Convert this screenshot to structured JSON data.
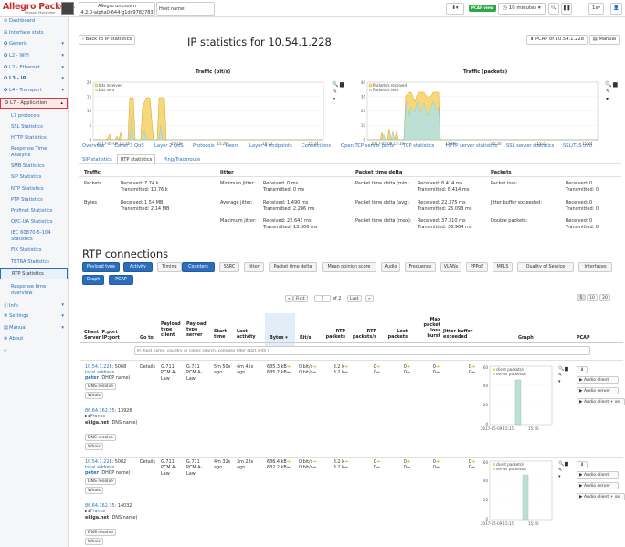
{
  "header": {
    "logo": "Allegro Packets",
    "logo_sub": "Network Multimeter",
    "device_name": "Allegro unknown",
    "device_version": "4.2.0-alpha0-644-g1dc9782783",
    "hostname_label": "Host name:",
    "pcap_view_badge": "PCAP view",
    "time_range": "10 minutes",
    "interval": "1s"
  },
  "sidebar": {
    "items": [
      {
        "label": "Dashboard",
        "icon": "dashboard-icon"
      },
      {
        "label": "Interface stats",
        "icon": "interface-icon"
      },
      {
        "label": "Generic",
        "icon": "gear-icon"
      },
      {
        "label": "L2 - WiFi",
        "icon": "gear-icon"
      },
      {
        "label": "L2 - Ethernet",
        "icon": "gear-icon"
      },
      {
        "label": "L3 - IP",
        "icon": "gear-icon"
      },
      {
        "label": "L4 - Transport",
        "icon": "gear-icon"
      },
      {
        "label": "L7 - Application",
        "icon": "gear-icon"
      }
    ],
    "sub_items": [
      "L7 protocols",
      "SSL Statistics",
      "HTTP Statistics",
      "Response Time Analysis",
      "SMB Statistics",
      "SIP Statistics",
      "NTP Statistics",
      "PTP Statistics",
      "Profinet Statistics",
      "OPC-UA Statistics",
      "IEC 60870-5-104 Statistics",
      "FIX Statistics",
      "TETRA Statistics",
      "RTP Statistics",
      "Response time overview"
    ],
    "bottom_items": [
      {
        "label": "Info",
        "icon": "info-icon"
      },
      {
        "label": "Settings",
        "icon": "settings-icon"
      },
      {
        "label": "Manual",
        "icon": "book-icon"
      },
      {
        "label": "About",
        "icon": "about-icon"
      }
    ],
    "collapse": "«"
  },
  "toolbar": {
    "back_label": "Back to IP statistics",
    "pcap_label": "PCAP of 10.54.1.228",
    "manual_label": "Manual"
  },
  "page_title": "IP statistics for 10.54.1.228",
  "charts": [
    {
      "title": "Traffic (bit/s)",
      "legend": [
        "bits received",
        "bits sent"
      ],
      "yticks": [
        "20",
        "15",
        "10",
        "5",
        "0"
      ],
      "xticks": [
        "2017-05-09 15:16",
        "15:18",
        "15:20",
        "15:22",
        "15:24"
      ]
    },
    {
      "title": "Traffic (packets)",
      "legend": [
        "Packets/s received",
        "Packets/s sent"
      ],
      "yticks": [
        "40",
        "30",
        "20",
        "10",
        "0"
      ],
      "xticks": [
        "2017-05-09 15:16",
        "15:18",
        "15:20",
        "15:22",
        "15:24"
      ]
    }
  ],
  "tabs": [
    "Overview",
    "Layer 3 QoS",
    "Layer 2 QoS",
    "Protocols",
    "Peers",
    "Layer 4 endpoints",
    "Connections",
    "Open TCP server ports",
    "TCP statistics",
    "HTTP server statistics",
    "SSL server statistics",
    "SSL/TLS info",
    "SIP statistics",
    "RTP statistics",
    "Ping/Traceroute"
  ],
  "stats": {
    "traffic": {
      "title": "Traffic",
      "rows": [
        {
          "label": "Packets",
          "received": "Received: 7.74 k",
          "transmitted": "Transmitted: 10.76 k"
        },
        {
          "label": "Bytes",
          "received": "Received: 1.54 MB",
          "transmitted": "Transmitted: 2.14 MB"
        }
      ]
    },
    "jitter": {
      "title": "Jitter",
      "rows": [
        {
          "label": "Minimum jitter:",
          "received": "Received: 0 ms",
          "transmitted": "Transmitted: 0 ms"
        },
        {
          "label": "Average jitter:",
          "received": "Received: 1.490 ms",
          "transmitted": "Transmitted: 2.286 ms"
        },
        {
          "label": "Maximum jitter:",
          "received": "Received: 22.643 ms",
          "transmitted": "Transmitted: 13.306 ms"
        }
      ]
    },
    "delta": {
      "title": "Packet time delta",
      "rows": [
        {
          "label": "Packet time delta (min):",
          "received": "Received: 8.414 ms",
          "transmitted": "Transmitted: 8.414 ms"
        },
        {
          "label": "Packet time delta (avg):",
          "received": "Received: 22.375 ms",
          "transmitted": "Transmitted: 25.093 ms"
        },
        {
          "label": "Packet time delta (max):",
          "received": "Received: 37.310 ms",
          "transmitted": "Transmitted: 36.964 ms"
        }
      ]
    },
    "packets": {
      "title": "Packets",
      "rows": [
        {
          "label": "Packet loss:",
          "received": "Received: 0",
          "transmitted": "Transmitted: 0"
        },
        {
          "label": "Jitter buffer exceeded:",
          "received": "Received: 0",
          "transmitted": "Transmitted: 0"
        },
        {
          "label": "Double packets:",
          "received": "Received: 0",
          "transmitted": "Transmitted: 0"
        }
      ]
    }
  },
  "rtp_title": "RTP connections",
  "filters_row1": [
    {
      "label": "Payload type",
      "on": true
    },
    {
      "label": "Activity",
      "on": true
    },
    {
      "label": "Timing",
      "on": false
    },
    {
      "label": "Counters",
      "on": true
    },
    {
      "label": "SSRC",
      "on": false
    },
    {
      "label": "Jitter",
      "on": false
    },
    {
      "label": "Packet time delta",
      "on": false
    },
    {
      "label": "Mean opinion score",
      "on": false
    },
    {
      "label": "Audio",
      "on": false
    },
    {
      "label": "Frequency",
      "on": false
    },
    {
      "label": "VLANs",
      "on": false
    },
    {
      "label": "PPPoE",
      "on": false
    },
    {
      "label": "MPLS",
      "on": false
    },
    {
      "label": "Quality of Service",
      "on": false
    },
    {
      "label": "Interfaces",
      "on": false
    }
  ],
  "filters_row2": [
    {
      "label": "Graph",
      "on": true
    },
    {
      "label": "PCAP",
      "on": true
    }
  ],
  "pagination": {
    "prev": "«",
    "first": "First",
    "page": "1",
    "of": "of 2",
    "last": "Last",
    "next": "»",
    "sizes": [
      "5",
      "10",
      "20"
    ]
  },
  "table": {
    "headers": {
      "client": "Client IP:port",
      "server": "Server IP:port",
      "goto": "Go to",
      "pt_client": "Payload type client",
      "pt_server": "Payload type server",
      "start": "Start time",
      "last": "Last activity",
      "bytes": "Bytes",
      "bits": "Bit/s",
      "rtp_packets": "RTP packets",
      "rtp_rate": "RTP packets/s",
      "lost": "Lost packets",
      "max_loss": "Max packet loss burst",
      "jitter": "Jitter buffer exceeded",
      "graph": "Graph",
      "pcap": "PCAP"
    },
    "filter_placeholder": "IP, host name, country or codec search, complex filter start with (",
    "rows": [
      {
        "client_ip": "10.54.1.228",
        "client_port": ": 5068",
        "client_local": "local address",
        "client_host": "peter",
        "client_host_note": "(DHCP name)",
        "server_ip": "86.64.162.35",
        "server_port": ": 13926",
        "server_country": "France",
        "server_host": "ekiga.net",
        "server_host_note": "(DNS name)",
        "goto": "Details",
        "pt_client": "G.711 PCM A-Law",
        "pt_server": "G.711 PCM A-Law",
        "start": "5m 50s ago",
        "last": "4m 45s ago",
        "bytes_1": "685.3 kB",
        "bytes_2": "685.7 kB",
        "bits_1": "0 bit/s",
        "bits_2": "0 bit/s",
        "rtp_1": "3.2 k",
        "rtp_2": "3.2 k",
        "rate_1": "0",
        "rate_2": "0",
        "lost_1": "0",
        "lost_2": "0",
        "max_1": "0",
        "max_2": "0",
        "jit_1": "0",
        "jit_2": "0",
        "graph_time": "2017-05-09 15:15",
        "graph_time2": "15:20",
        "graph_legend": [
          "client packets/s",
          "server packets/s"
        ],
        "graph_yticks": [
          "60",
          "40",
          "20",
          "0"
        ],
        "buttons": [
          "Audio client",
          "Audio server",
          "Audio client + se"
        ]
      },
      {
        "client_ip": "10.54.1.228",
        "client_port": ": 5082",
        "client_local": "local address",
        "client_host": "peter",
        "client_host_note": "(DHCP name)",
        "server_ip": "86.64.162.35",
        "server_port": ": 14032",
        "server_country": "France",
        "server_host": "ekiga.net",
        "server_host_note": "(DNS name)",
        "goto": "Details",
        "pt_client": "G.711 PCM A-Law",
        "pt_server": "G.711 PCM A-Law",
        "start": "4m 32s ago",
        "last": "3m 28s ago",
        "bytes_1": "686.4 kB",
        "bytes_2": "682.2 kB",
        "bits_1": "0 bit/s",
        "bits_2": "0 bit/s",
        "rtp_1": "3.2 k",
        "rtp_2": "3.2 k",
        "rate_1": "0",
        "rate_2": "0",
        "lost_1": "0",
        "lost_2": "0",
        "max_1": "0",
        "max_2": "0",
        "jit_1": "0",
        "jit_2": "0",
        "graph_time": "2017-05-09 15:15",
        "graph_time2": "15:20",
        "graph_legend": [
          "client packets/s",
          "server packets/s"
        ],
        "graph_yticks": [
          "60",
          "40",
          "20",
          "0"
        ],
        "buttons": [
          "Audio client",
          "Audio server",
          "Audio client + se"
        ]
      }
    ],
    "dns_resolve": "DNS resolve",
    "whois": "Whois"
  },
  "colors": {
    "accent": "#2a6ebb",
    "received": "#f0c040",
    "sent": "#9fcfc0",
    "highlight": "#d9363e"
  }
}
